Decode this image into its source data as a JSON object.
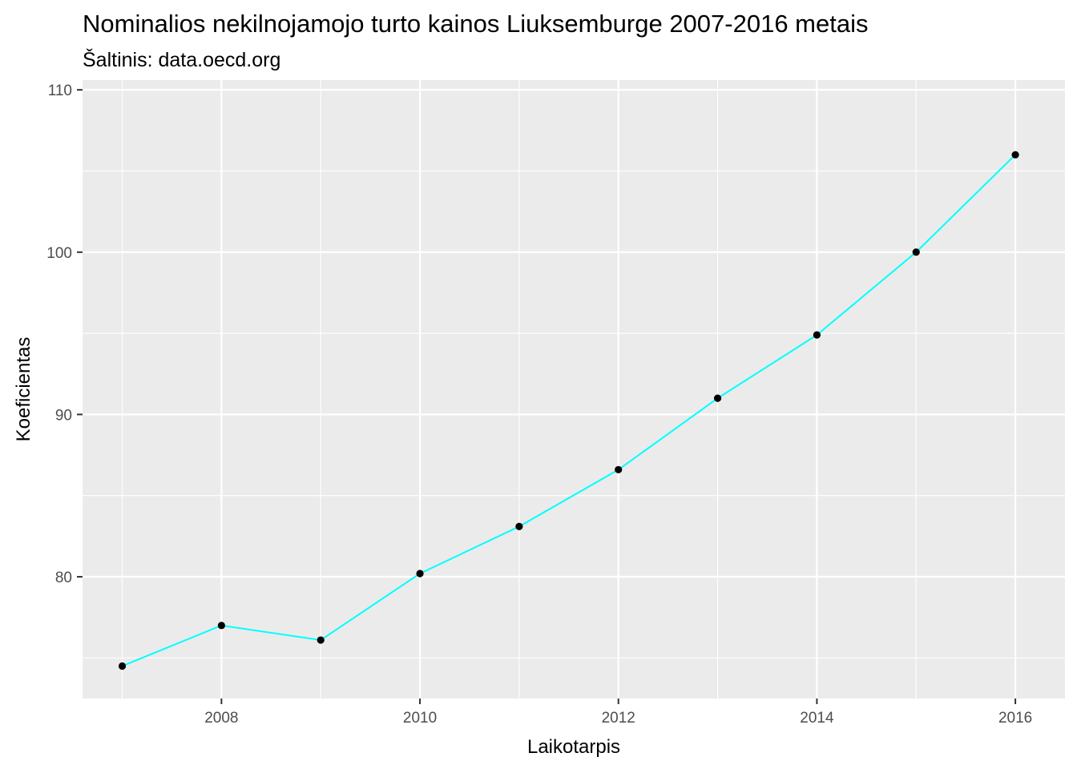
{
  "chart_data": {
    "type": "line",
    "title": "Nominalios nekilnojamojo turto kainos Liuksemburge 2007-2016 metais",
    "subtitle": "Šaltinis: data.oecd.org",
    "xlabel": "Laikotarpis",
    "ylabel": "Koeficientas",
    "x": [
      2007,
      2008,
      2009,
      2010,
      2011,
      2012,
      2013,
      2014,
      2015,
      2016
    ],
    "series": [
      {
        "values": [
          74.5,
          77.0,
          76.1,
          80.2,
          83.1,
          86.6,
          91.0,
          94.9,
          100.0,
          106.0
        ]
      }
    ],
    "xlim": [
      2006.6,
      2016.5
    ],
    "ylim": [
      72.5,
      110.6
    ],
    "x_ticks": [
      2008,
      2010,
      2012,
      2014,
      2016
    ],
    "y_ticks": [
      80,
      90,
      100,
      110
    ],
    "grid": true,
    "line_color": "#00FFFF",
    "point_color": "#000000",
    "panel_background": "#EBEBEB",
    "grid_color": "#FFFFFF"
  }
}
